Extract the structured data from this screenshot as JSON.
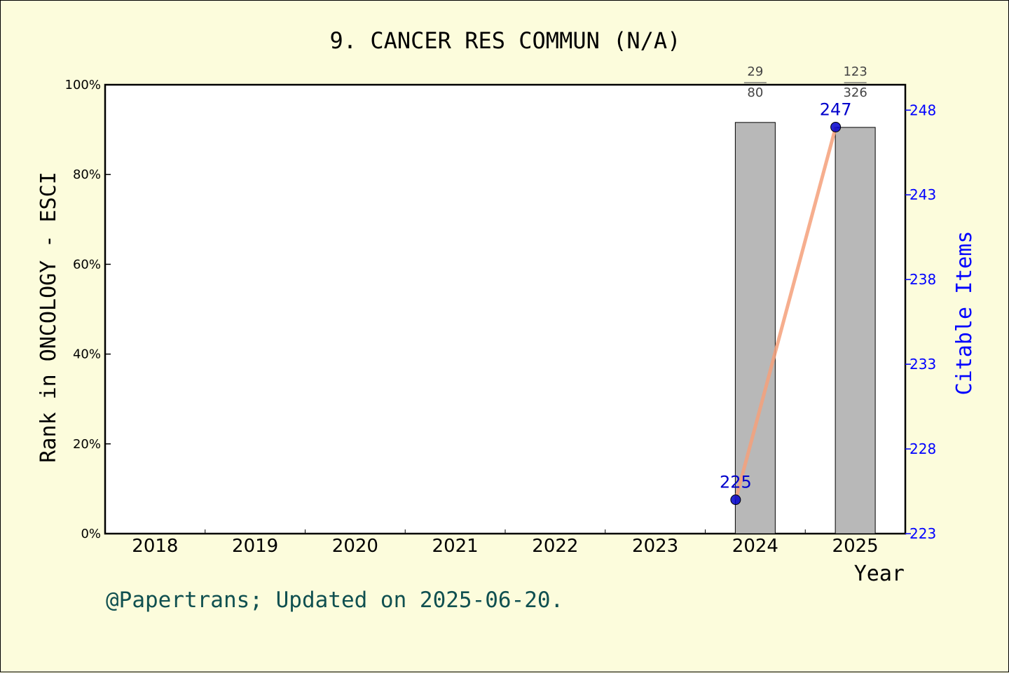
{
  "chart_data": {
    "type": "bar",
    "title": "9. CANCER RES COMMUN (N/A)",
    "xlabel": "Year",
    "ylabel": "Rank in ONCOLOGY - ESCI",
    "y2label": "Citable Items",
    "categories": [
      "2018",
      "2019",
      "2020",
      "2021",
      "2022",
      "2023",
      "2024",
      "2025"
    ],
    "ylim": [
      0,
      100
    ],
    "yticks": [
      "0%",
      "20%",
      "40%",
      "60%",
      "80%",
      "100%"
    ],
    "y2lim": [
      223,
      249.5
    ],
    "y2ticks": [
      "223",
      "228",
      "233",
      "238",
      "243",
      "248"
    ],
    "bars": [
      {
        "category": "2024",
        "value": 91.6,
        "numerator": "29",
        "denominator": "80"
      },
      {
        "category": "2025",
        "value": 90.5,
        "numerator": "123",
        "denominator": "326"
      }
    ],
    "line": {
      "name": "Citable Items",
      "points": [
        {
          "category": "2024",
          "value": 225,
          "label": "225"
        },
        {
          "category": "2025",
          "value": 247,
          "label": "247"
        }
      ]
    },
    "colors": {
      "bar": "#b8b8b8",
      "line": "#f4a07a",
      "marker": "#0000cc",
      "right_axis": "#0000ff",
      "footer": "#105050",
      "background": "#fcfcdc"
    }
  },
  "footer": "@Papertrans; Updated on 2025-06-20."
}
